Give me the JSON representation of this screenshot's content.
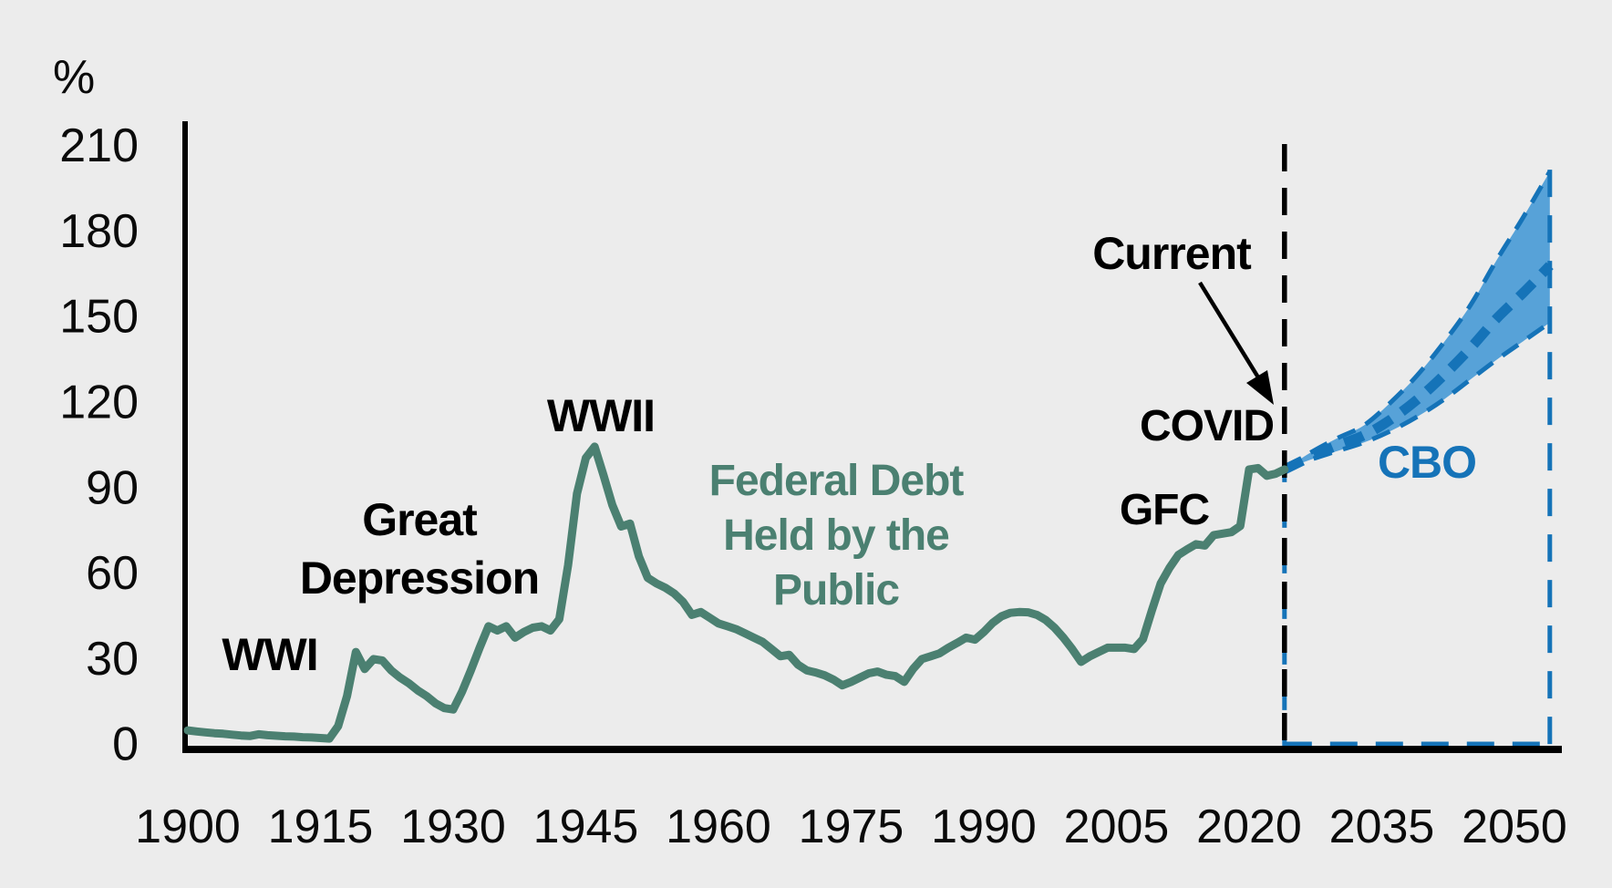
{
  "figure": {
    "unit_label": "%",
    "background_color": "#ececec",
    "colors": {
      "history_line": "#4b8071",
      "projection_line": "#1573b8",
      "projection_fill": "#57a2d8",
      "axis": "#000000",
      "tick_text": "#0a0a0a",
      "annotation_text": "#000000"
    }
  },
  "annotations": {
    "wwi": "WWI",
    "great_depression": "Great Depression",
    "wwii": "WWII",
    "series_label": "Federal Debt Held by the Public",
    "covid": "COVID",
    "gfc": "GFC",
    "current": "Current",
    "cbo": "CBO"
  },
  "chart_data": {
    "type": "line",
    "title": "",
    "unit": "%",
    "ylabel": "%",
    "xlabel": "",
    "grid": false,
    "legend": "none",
    "xlim": [
      1900,
      2055
    ],
    "ylim": [
      0,
      210
    ],
    "x_ticks": [
      1900,
      1915,
      1930,
      1945,
      1960,
      1975,
      1990,
      2005,
      2020,
      2035,
      2050
    ],
    "y_ticks": [
      0,
      30,
      60,
      90,
      120,
      150,
      180,
      210
    ],
    "series": [
      {
        "name": "Federal Debt Held by the Public (history, % of GDP)",
        "style": "solid",
        "points": [
          [
            1900,
            5
          ],
          [
            1901,
            4.6
          ],
          [
            1902,
            4.3
          ],
          [
            1903,
            4
          ],
          [
            1904,
            3.8
          ],
          [
            1905,
            3.5
          ],
          [
            1906,
            3.2
          ],
          [
            1907,
            3
          ],
          [
            1908,
            3.6
          ],
          [
            1909,
            3.3
          ],
          [
            1910,
            3.1
          ],
          [
            1911,
            2.9
          ],
          [
            1912,
            2.8
          ],
          [
            1913,
            2.6
          ],
          [
            1914,
            2.5
          ],
          [
            1915,
            2.3
          ],
          [
            1916,
            2.1
          ],
          [
            1917,
            6.5
          ],
          [
            1918,
            17
          ],
          [
            1919,
            32.5
          ],
          [
            1920,
            26.5
          ],
          [
            1921,
            30
          ],
          [
            1922,
            29.5
          ],
          [
            1923,
            26
          ],
          [
            1924,
            23.5
          ],
          [
            1925,
            21.5
          ],
          [
            1926,
            19
          ],
          [
            1927,
            17
          ],
          [
            1928,
            14.5
          ],
          [
            1929,
            12.8
          ],
          [
            1930,
            12.3
          ],
          [
            1931,
            18.5
          ],
          [
            1932,
            26
          ],
          [
            1933,
            34
          ],
          [
            1934,
            41.5
          ],
          [
            1935,
            40
          ],
          [
            1936,
            41.5
          ],
          [
            1937,
            37.5
          ],
          [
            1938,
            39.5
          ],
          [
            1939,
            41
          ],
          [
            1940,
            41.5
          ],
          [
            1941,
            40
          ],
          [
            1942,
            44
          ],
          [
            1943,
            63
          ],
          [
            1944,
            88
          ],
          [
            1945,
            100.5
          ],
          [
            1946,
            104.5
          ],
          [
            1947,
            94.5
          ],
          [
            1948,
            84
          ],
          [
            1949,
            76.5
          ],
          [
            1950,
            77.5
          ],
          [
            1951,
            66
          ],
          [
            1952,
            58.5
          ],
          [
            1953,
            56.5
          ],
          [
            1954,
            55
          ],
          [
            1955,
            53
          ],
          [
            1956,
            50
          ],
          [
            1957,
            45.5
          ],
          [
            1958,
            46.5
          ],
          [
            1959,
            44.5
          ],
          [
            1960,
            42.5
          ],
          [
            1961,
            41.5
          ],
          [
            1962,
            40.5
          ],
          [
            1963,
            39
          ],
          [
            1964,
            37.5
          ],
          [
            1965,
            36
          ],
          [
            1966,
            33.5
          ],
          [
            1967,
            31
          ],
          [
            1968,
            31.5
          ],
          [
            1969,
            28
          ],
          [
            1970,
            26
          ],
          [
            1971,
            25.3
          ],
          [
            1972,
            24.3
          ],
          [
            1973,
            22.8
          ],
          [
            1974,
            20.8
          ],
          [
            1975,
            22
          ],
          [
            1976,
            23.5
          ],
          [
            1977,
            25
          ],
          [
            1978,
            25.6
          ],
          [
            1979,
            24.5
          ],
          [
            1980,
            24
          ],
          [
            1981,
            22
          ],
          [
            1982,
            26.5
          ],
          [
            1983,
            30
          ],
          [
            1984,
            31
          ],
          [
            1985,
            32
          ],
          [
            1986,
            34
          ],
          [
            1987,
            35.7
          ],
          [
            1988,
            37.5
          ],
          [
            1989,
            36.8
          ],
          [
            1990,
            39.5
          ],
          [
            1991,
            42.7
          ],
          [
            1992,
            45
          ],
          [
            1993,
            46.2
          ],
          [
            1994,
            46.5
          ],
          [
            1995,
            46.4
          ],
          [
            1996,
            45.5
          ],
          [
            1997,
            43.7
          ],
          [
            1998,
            41
          ],
          [
            1999,
            37.5
          ],
          [
            2000,
            33.5
          ],
          [
            2001,
            29
          ],
          [
            2002,
            31
          ],
          [
            2003,
            32.5
          ],
          [
            2004,
            34
          ],
          [
            2005,
            34
          ],
          [
            2006,
            34
          ],
          [
            2007,
            33.5
          ],
          [
            2008,
            37
          ],
          [
            2009,
            47
          ],
          [
            2010,
            56.5
          ],
          [
            2011,
            62
          ],
          [
            2012,
            66.5
          ],
          [
            2013,
            68.5
          ],
          [
            2014,
            70.3
          ],
          [
            2015,
            69.8
          ],
          [
            2016,
            73.5
          ],
          [
            2017,
            74
          ],
          [
            2018,
            74.5
          ],
          [
            2019,
            76.7
          ],
          [
            2020,
            96.5
          ],
          [
            2021,
            97
          ],
          [
            2022,
            94.3
          ],
          [
            2023,
            95
          ],
          [
            2024,
            96.5
          ]
        ]
      }
    ],
    "projection": {
      "name": "CBO projection (% of GDP)",
      "years": [
        2024,
        2027,
        2030,
        2033,
        2036,
        2039,
        2042,
        2045,
        2048,
        2051,
        2054
      ],
      "central": [
        96.5,
        101,
        105,
        108.5,
        114,
        121,
        129.5,
        139,
        149.5,
        158.5,
        168
      ],
      "low": [
        96.5,
        100,
        103,
        106,
        110,
        115,
        121,
        128,
        135,
        141.5,
        148
      ],
      "high": [
        96.5,
        102.5,
        107.5,
        112,
        120,
        129.5,
        141,
        154,
        170,
        185,
        201
      ]
    },
    "markers": {
      "current_line_year": 2024,
      "projection_end_year": 2054
    }
  }
}
